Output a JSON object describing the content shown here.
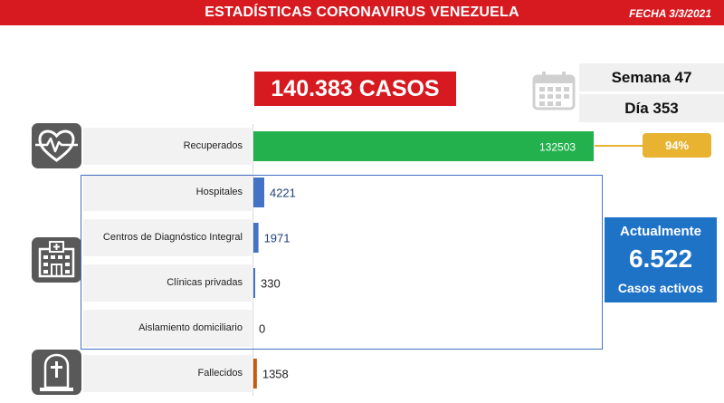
{
  "header": {
    "title": "ESTADÍSTICAS CORONAVIRUS VENEZUELA",
    "date": "FECHA 3/3/2021"
  },
  "total": {
    "label": "140.383 CASOS"
  },
  "period": {
    "week": "Semana 47",
    "day": "Día 353"
  },
  "recovered_share": {
    "label": "94%"
  },
  "active": {
    "line1": "Actualmente",
    "value": "6.522",
    "line2": "Casos activos"
  },
  "icons": {
    "recovered": "heart-pulse-icon",
    "facilities": "hospital-building-icon",
    "deaths": "tombstone-cross-icon",
    "calendar": "calendar-icon"
  },
  "colors": {
    "header": "#d71920",
    "recovered": "#22b14c",
    "active": "#4472c4",
    "deaths": "#c55a11",
    "percent": "#e7b330",
    "active_box": "#1f73c7"
  },
  "chart_data": {
    "type": "bar",
    "orientation": "horizontal",
    "categories": [
      "Recuperados",
      "Hospitales",
      "Centros de Diagnóstico Integral",
      "Clínicas privadas",
      "Aislamiento domiciliario",
      "Fallecidos"
    ],
    "values": [
      132503,
      4221,
      1971,
      330,
      0,
      1358
    ],
    "value_labels": [
      "132503",
      "4221",
      "1971",
      "330",
      "0",
      "1358"
    ],
    "xlim": [
      0,
      132503
    ]
  }
}
